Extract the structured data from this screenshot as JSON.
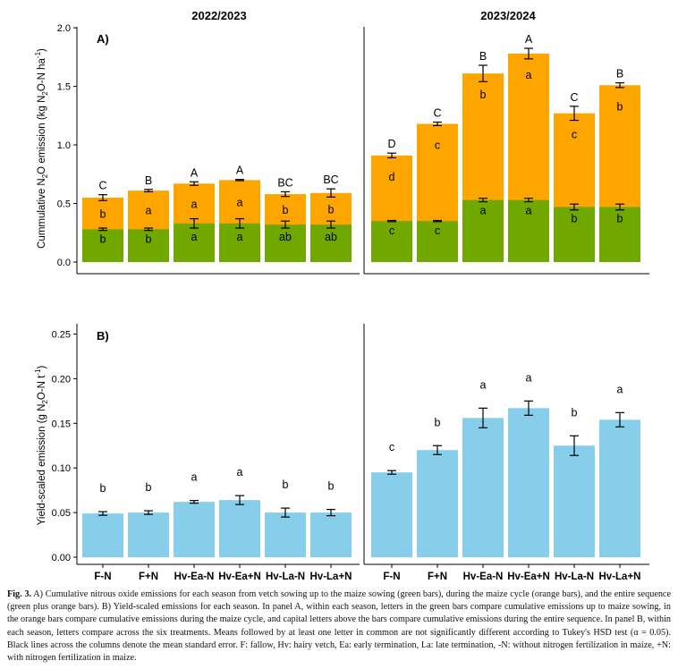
{
  "colors": {
    "green": "#70a800",
    "orange": "#ffa500",
    "blue": "#87ceeb",
    "axis": "#000000",
    "errorbar": "#000000"
  },
  "chart_data": [
    {
      "type": "bar",
      "stacked": true,
      "panel_label": "A)",
      "ylabel": "Cummulative N2O emission (kg N2O-N ha-1)",
      "ylabel_parts": {
        "a": "Cummulative N",
        "sub1": "2",
        "b": "O emission (kg N",
        "sub2": "2",
        "c": "O-N ha",
        "sup": "-1",
        "d": ")"
      },
      "ylim": [
        0,
        2.1
      ],
      "yticks": [
        0.0,
        0.5,
        1.0,
        1.5,
        2.0
      ],
      "ytick_labels": [
        "0.0",
        "0.5",
        "1.0",
        "1.5",
        "2.0"
      ],
      "seasons": [
        "2022/2023",
        "2023/2024"
      ],
      "categories": [
        "F-N",
        "F+N",
        "Hv-Ea-N",
        "Hv-Ea+N",
        "Hv-La-N",
        "Hv-La+N"
      ],
      "series": [
        {
          "name": "Up to maize sowing (green)",
          "color_key": "green",
          "values": [
            [
              0.28,
              0.28,
              0.33,
              0.33,
              0.32,
              0.32
            ],
            [
              0.35,
              0.35,
              0.53,
              0.53,
              0.47,
              0.47
            ]
          ],
          "error": [
            [
              0.01,
              0.01,
              0.04,
              0.04,
              0.03,
              0.03
            ],
            [
              0.005,
              0.005,
              0.015,
              0.015,
              0.025,
              0.025
            ]
          ],
          "letters": [
            [
              "b",
              "b",
              "a",
              "a",
              "ab",
              "ab"
            ],
            [
              "c",
              "c",
              "a",
              "a",
              "b",
              "b"
            ]
          ]
        },
        {
          "name": "Maize cycle (orange)",
          "color_key": "orange",
          "totals": [
            [
              0.55,
              0.61,
              0.67,
              0.7,
              0.58,
              0.59
            ],
            [
              0.91,
              1.18,
              1.61,
              1.78,
              1.27,
              1.51
            ]
          ],
          "error": [
            [
              0.025,
              0.01,
              0.015,
              0.005,
              0.02,
              0.035
            ],
            [
              0.02,
              0.015,
              0.07,
              0.045,
              0.06,
              0.02
            ]
          ],
          "letters": [
            [
              "b",
              "a",
              "a",
              "a",
              "b",
              "b"
            ],
            [
              "d",
              "c",
              "b",
              "a",
              "c",
              "b"
            ]
          ]
        }
      ],
      "total_letters": [
        [
          "C",
          "B",
          "A",
          "A",
          "BC",
          "BC"
        ],
        [
          "D",
          "C",
          "B",
          "A",
          "C",
          "B"
        ]
      ]
    },
    {
      "type": "bar",
      "panel_label": "B)",
      "ylabel": "Yield-scaled emission (g N2O-N t-1)",
      "ylabel_parts": {
        "a": "Yield-scaled emission  (g N",
        "sub1": "2",
        "b": "O-N t",
        "sup": "-1",
        "c": ")"
      },
      "ylim": [
        0,
        0.26
      ],
      "yticks": [
        0.0,
        0.05,
        0.1,
        0.15,
        0.2,
        0.25
      ],
      "ytick_labels": [
        "0.00",
        "0.05",
        "0.10",
        "0.15",
        "0.20",
        "0.25"
      ],
      "categories": [
        "F-N",
        "F+N",
        "Hv-Ea-N",
        "Hv-Ea+N",
        "Hv-La-N",
        "Hv-La+N"
      ],
      "series": [
        {
          "name": "Yield-scaled emission",
          "color_key": "blue",
          "values": [
            [
              0.049,
              0.05,
              0.062,
              0.064,
              0.05,
              0.05
            ],
            [
              0.095,
              0.12,
              0.156,
              0.167,
              0.125,
              0.154
            ]
          ],
          "error": [
            [
              0.002,
              0.002,
              0.0015,
              0.005,
              0.005,
              0.0035
            ],
            [
              0.002,
              0.005,
              0.011,
              0.008,
              0.011,
              0.008
            ]
          ],
          "letters": [
            [
              "b",
              "b",
              "a",
              "a",
              "b",
              "b"
            ],
            [
              "c",
              "b",
              "a",
              "a",
              "b",
              "a"
            ]
          ]
        }
      ]
    }
  ],
  "caption": {
    "fig_label": "Fig. 3.",
    "text": " A) Cumulative nitrous oxide emissions for each season from vetch sowing up to the maize sowing (green bars), during the maize cycle (orange bars), and the entire sequence (green plus orange bars). B) Yield-scaled emissions for each season. In panel A, within each season, letters in the green bars compare cumulative emissions up to maize sowing, in the orange bars compare cumulative emissions during the maize cycle, and capital letters above the bars compare cumulative emissions during the entire sequence. In panel B, within each season, letters compare across the six treatments. Means followed by at least one letter in common are not significantly different according to Tukey's HSD test (α = 0.05). Black lines across the columns denote the mean standard error. F: fallow, Hv: hairy vetch, Ea: early termination, La: late termination, -N: without nitrogen fertilization in maize, +N: with nitrogen fertilization in maize."
  }
}
